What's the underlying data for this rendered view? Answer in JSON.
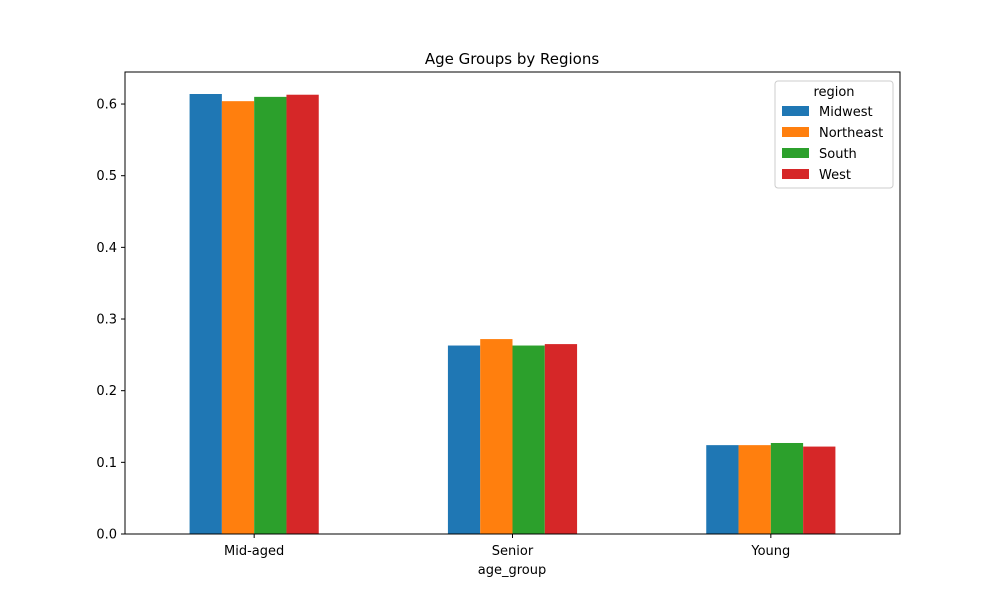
{
  "chart_data": {
    "type": "bar",
    "title": "Age Groups by Regions",
    "xlabel": "age_group",
    "ylabel": "",
    "categories": [
      "Mid-aged",
      "Senior",
      "Young"
    ],
    "series": [
      {
        "name": "Midwest",
        "values": [
          0.614,
          0.263,
          0.124
        ],
        "color": "#1f77b4"
      },
      {
        "name": "Northeast",
        "values": [
          0.604,
          0.272,
          0.124
        ],
        "color": "#ff7f0e"
      },
      {
        "name": "South",
        "values": [
          0.61,
          0.263,
          0.127
        ],
        "color": "#2ca02c"
      },
      {
        "name": "West",
        "values": [
          0.613,
          0.265,
          0.122
        ],
        "color": "#d62728"
      }
    ],
    "ylim": [
      0,
      0.6447
    ],
    "yticks": [
      0.0,
      0.1,
      0.2,
      0.3,
      0.4,
      0.5,
      0.6
    ],
    "ytick_labels": [
      "0.0",
      "0.1",
      "0.2",
      "0.3",
      "0.4",
      "0.5",
      "0.6"
    ],
    "grid": false,
    "legend": {
      "title": "region",
      "placement": "top-right"
    }
  }
}
